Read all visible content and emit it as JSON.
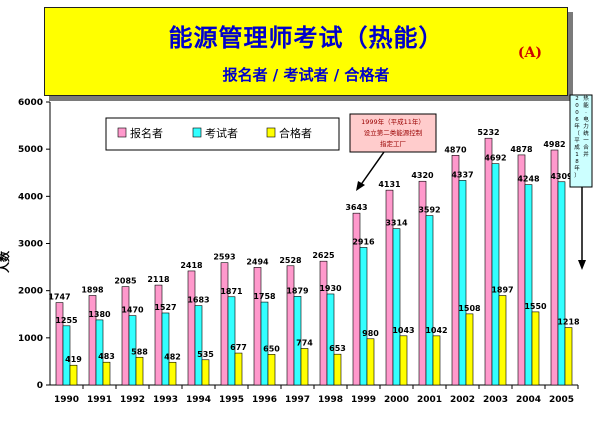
{
  "header": {
    "title": "能源管理师考试（热能）",
    "subtitle": "报名者 / 考试者 / 合格者",
    "tag": "(A)"
  },
  "colors": {
    "header_bg": "#ffff00",
    "title_text": "#0000cc",
    "tag_text": "#cc0000",
    "applicants": "#ff99cc",
    "examinees": "#33ffff",
    "passers": "#ffff00",
    "annotation_bg": "#ffcccc",
    "annotation_text": "#990000"
  },
  "chart_data": {
    "type": "bar",
    "categories": [
      "1990",
      "1991",
      "1992",
      "1993",
      "1994",
      "1995",
      "1996",
      "1997",
      "1998",
      "1999",
      "2000",
      "2001",
      "2002",
      "2003",
      "2004",
      "2005"
    ],
    "series": [
      {
        "name": "报名者",
        "key": "applicants",
        "values": [
          1747,
          1898,
          2085,
          2118,
          2418,
          2593,
          2494,
          2528,
          2625,
          3643,
          4131,
          4320,
          4870,
          5232,
          4878,
          4982
        ]
      },
      {
        "name": "考试者",
        "key": "examinees",
        "values": [
          1255,
          1380,
          1470,
          1527,
          1683,
          1871,
          1758,
          1879,
          1930,
          2916,
          3314,
          3592,
          4337,
          4692,
          4248,
          4309
        ]
      },
      {
        "name": "合格者",
        "key": "passers",
        "values": [
          419,
          483,
          588,
          482,
          535,
          677,
          650,
          774,
          653,
          980,
          1043,
          1042,
          1508,
          1897,
          1550,
          1218
        ]
      }
    ],
    "ylabel": "人数",
    "ylim": [
      0,
      6000
    ],
    "yticks": [
      0,
      1000,
      2000,
      3000,
      4000,
      5000,
      6000
    ],
    "ytick_labels": [
      "0",
      "1000",
      "2000",
      "3000",
      "4000",
      "5000",
      "6000"
    ],
    "legend_position": "top-left",
    "grid": false,
    "annotations": [
      {
        "lines": [
          "1999年（平成11年）",
          "设立第二类能源控制",
          "指定工厂"
        ],
        "target_category": "1999"
      },
      {
        "text": "2006年（平成18年）热能·电力统一合并",
        "target_category": "2005"
      }
    ]
  }
}
